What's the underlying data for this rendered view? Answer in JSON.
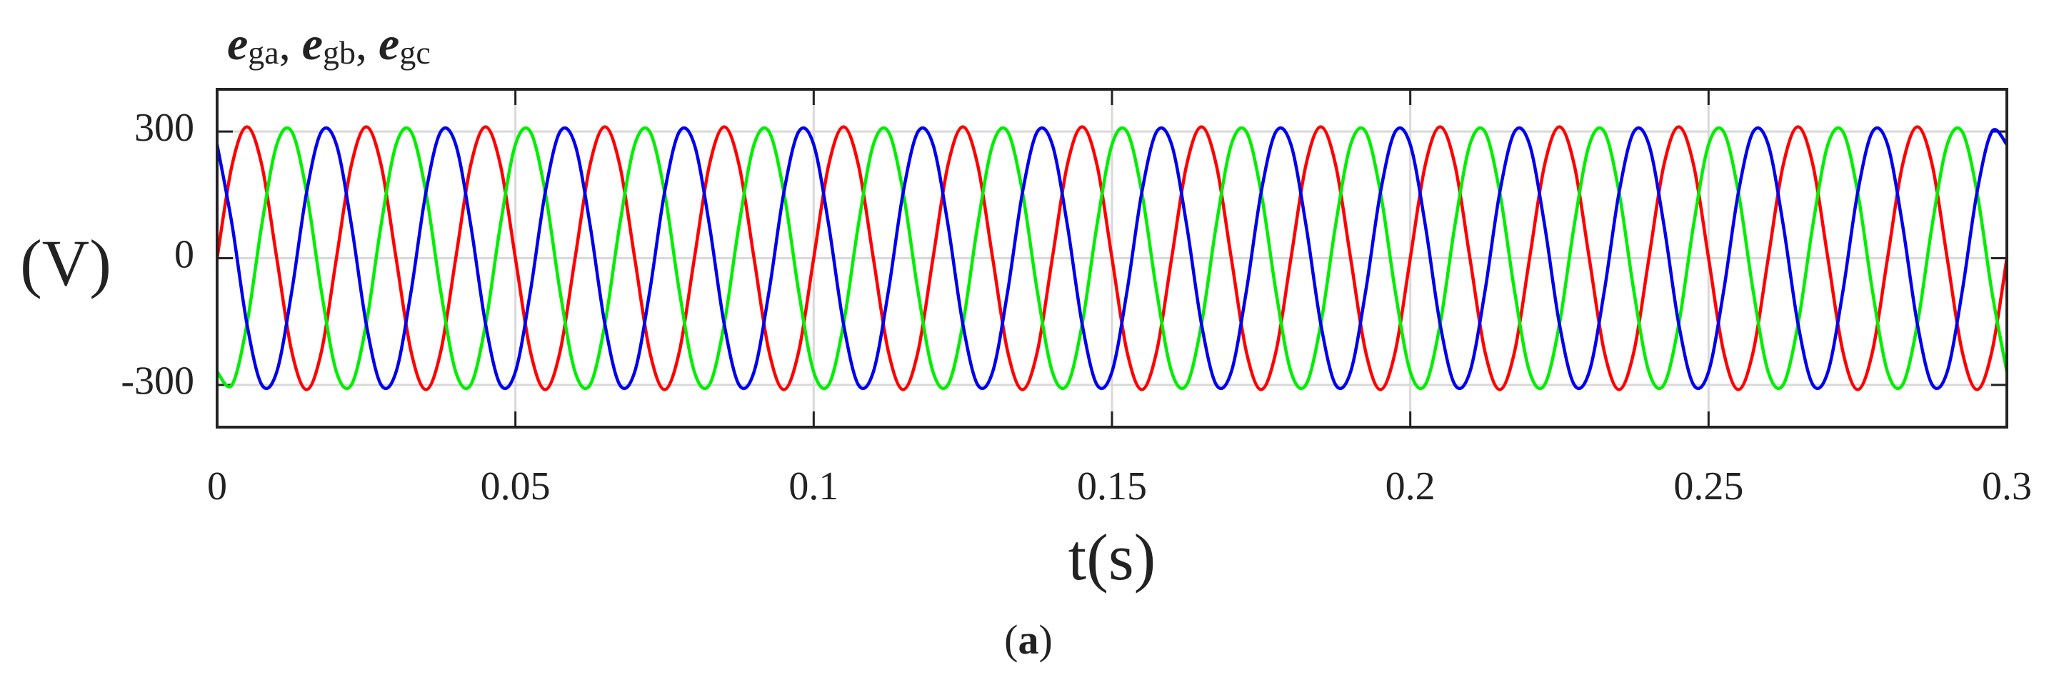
{
  "chart_data": {
    "type": "line",
    "title": [
      {
        "symbol": "e",
        "subscript": "ga",
        "after": ","
      },
      {
        "symbol": "e",
        "subscript": "gb",
        "after": ","
      },
      {
        "symbol": "e",
        "subscript": "gc"
      }
    ],
    "y_label": "(V)",
    "x_label": "t(s)",
    "caption": [
      "(",
      "a",
      ")"
    ],
    "xlim": [
      0,
      0.3
    ],
    "xticks": [
      0,
      0.05,
      0.1,
      0.15,
      0.2,
      0.25,
      0.3
    ],
    "ylim": [
      -400,
      400
    ],
    "yticks": [
      -300,
      0,
      300
    ],
    "grid": true,
    "x": [
      0,
      0.0025,
      0.005,
      0.0075,
      0.01,
      0.0125,
      0.015,
      0.0175,
      0.02,
      0.0225,
      0.025,
      0.0275,
      0.03,
      0.0325,
      0.035,
      0.0375,
      0.04,
      0.0425,
      0.045,
      0.0475,
      0.05,
      0.0525,
      0.055,
      0.0575,
      0.06,
      0.0625,
      0.065,
      0.0675,
      0.07,
      0.0725,
      0.075,
      0.0775,
      0.08,
      0.0825,
      0.085,
      0.0875,
      0.09,
      0.0925,
      0.095,
      0.0975,
      0.1,
      0.1025,
      0.105,
      0.1075,
      0.11,
      0.1125,
      0.115,
      0.1175,
      0.12,
      0.1225,
      0.125,
      0.1275,
      0.13,
      0.1325,
      0.135,
      0.1375,
      0.14,
      0.1425,
      0.145,
      0.1475,
      0.15,
      0.1525,
      0.155,
      0.1575,
      0.16,
      0.1625,
      0.165,
      0.1675,
      0.17,
      0.1725,
      0.175,
      0.1775,
      0.18,
      0.1825,
      0.185,
      0.1875,
      0.19,
      0.1925,
      0.195,
      0.1975,
      0.2,
      0.2025,
      0.205,
      0.2075,
      0.21,
      0.2125,
      0.215,
      0.2175,
      0.22,
      0.2225,
      0.225,
      0.2275,
      0.23,
      0.2325,
      0.235,
      0.2375,
      0.24,
      0.2425,
      0.245,
      0.2475,
      0.25,
      0.2525,
      0.255,
      0.2575,
      0.26,
      0.2625,
      0.265,
      0.2675,
      0.27,
      0.2725,
      0.275,
      0.2775,
      0.28,
      0.2825,
      0.285,
      0.2875,
      0.29,
      0.2925,
      0.295,
      0.2975,
      0.3
    ],
    "series": [
      {
        "color": "#ff0000",
        "values": [
          0,
          220,
          311,
          220,
          0,
          -220,
          -311,
          -220,
          0,
          220,
          311,
          220,
          0,
          -220,
          -311,
          -220,
          0,
          220,
          311,
          220,
          0,
          -220,
          -311,
          -220,
          0,
          220,
          311,
          220,
          0,
          -220,
          -311,
          -220,
          0,
          220,
          311,
          220,
          0,
          -220,
          -311,
          -220,
          0,
          220,
          311,
          220,
          0,
          -220,
          -311,
          -220,
          0,
          220,
          311,
          220,
          0,
          -220,
          -311,
          -220,
          0,
          220,
          311,
          220,
          0,
          -220,
          -311,
          -220,
          0,
          220,
          311,
          220,
          0,
          -220,
          -311,
          -220,
          0,
          220,
          311,
          220,
          0,
          -220,
          -311,
          -220,
          0,
          220,
          311,
          220,
          0,
          -220,
          -311,
          -220,
          0,
          220,
          311,
          220,
          0,
          -220,
          -311,
          -220,
          0,
          220,
          311,
          220,
          0,
          -220,
          -311,
          -220,
          0,
          220,
          311,
          220,
          0,
          -220,
          -311,
          -220,
          0,
          220,
          311,
          220,
          0,
          -220,
          -311,
          -220,
          0
        ]
      },
      {
        "color": "#00ee00",
        "values": [
          -269,
          -300,
          -156,
          80,
          269,
          300,
          156,
          -80,
          -269,
          -300,
          -156,
          80,
          269,
          300,
          156,
          -80,
          -269,
          -300,
          -156,
          80,
          269,
          300,
          156,
          -80,
          -269,
          -300,
          -156,
          80,
          269,
          300,
          156,
          -80,
          -269,
          -300,
          -156,
          80,
          269,
          300,
          156,
          -80,
          -269,
          -300,
          -156,
          80,
          269,
          300,
          156,
          -80,
          -269,
          -300,
          -156,
          80,
          269,
          300,
          156,
          -80,
          -269,
          -300,
          -156,
          80,
          269,
          300,
          156,
          -80,
          -269,
          -300,
          -156,
          80,
          269,
          300,
          156,
          -80,
          -269,
          -300,
          -156,
          80,
          269,
          300,
          156,
          -80,
          -269,
          -300,
          -156,
          80,
          269,
          300,
          156,
          -80,
          -269,
          -300,
          -156,
          80,
          269,
          300,
          156,
          -80,
          -269,
          -300,
          -156,
          80,
          269,
          300,
          156,
          -80,
          -269,
          -300,
          -156,
          80,
          269,
          300,
          156,
          -80,
          -269,
          -300,
          -156,
          80,
          269,
          300,
          156,
          -80,
          -269
        ]
      },
      {
        "color": "#0000ee",
        "values": [
          269,
          80,
          -156,
          -300,
          -269,
          -80,
          156,
          300,
          269,
          80,
          -156,
          -300,
          -269,
          -80,
          156,
          300,
          269,
          80,
          -156,
          -300,
          -269,
          -80,
          156,
          300,
          269,
          80,
          -156,
          -300,
          -269,
          -80,
          156,
          300,
          269,
          80,
          -156,
          -300,
          -269,
          -80,
          156,
          300,
          269,
          80,
          -156,
          -300,
          -269,
          -80,
          156,
          300,
          269,
          80,
          -156,
          -300,
          -269,
          -80,
          156,
          300,
          269,
          80,
          -156,
          -300,
          -269,
          -80,
          156,
          300,
          269,
          80,
          -156,
          -300,
          -269,
          -80,
          156,
          300,
          269,
          80,
          -156,
          -300,
          -269,
          -80,
          156,
          300,
          269,
          80,
          -156,
          -300,
          -269,
          -80,
          156,
          300,
          269,
          80,
          -156,
          -300,
          -269,
          -80,
          156,
          300,
          269,
          80,
          -156,
          -300,
          -269,
          -80,
          156,
          300,
          269,
          80,
          -156,
          -300,
          -269,
          -80,
          156,
          300,
          269,
          80,
          -156,
          -300,
          -269,
          -80,
          156,
          300,
          269
        ]
      }
    ]
  }
}
